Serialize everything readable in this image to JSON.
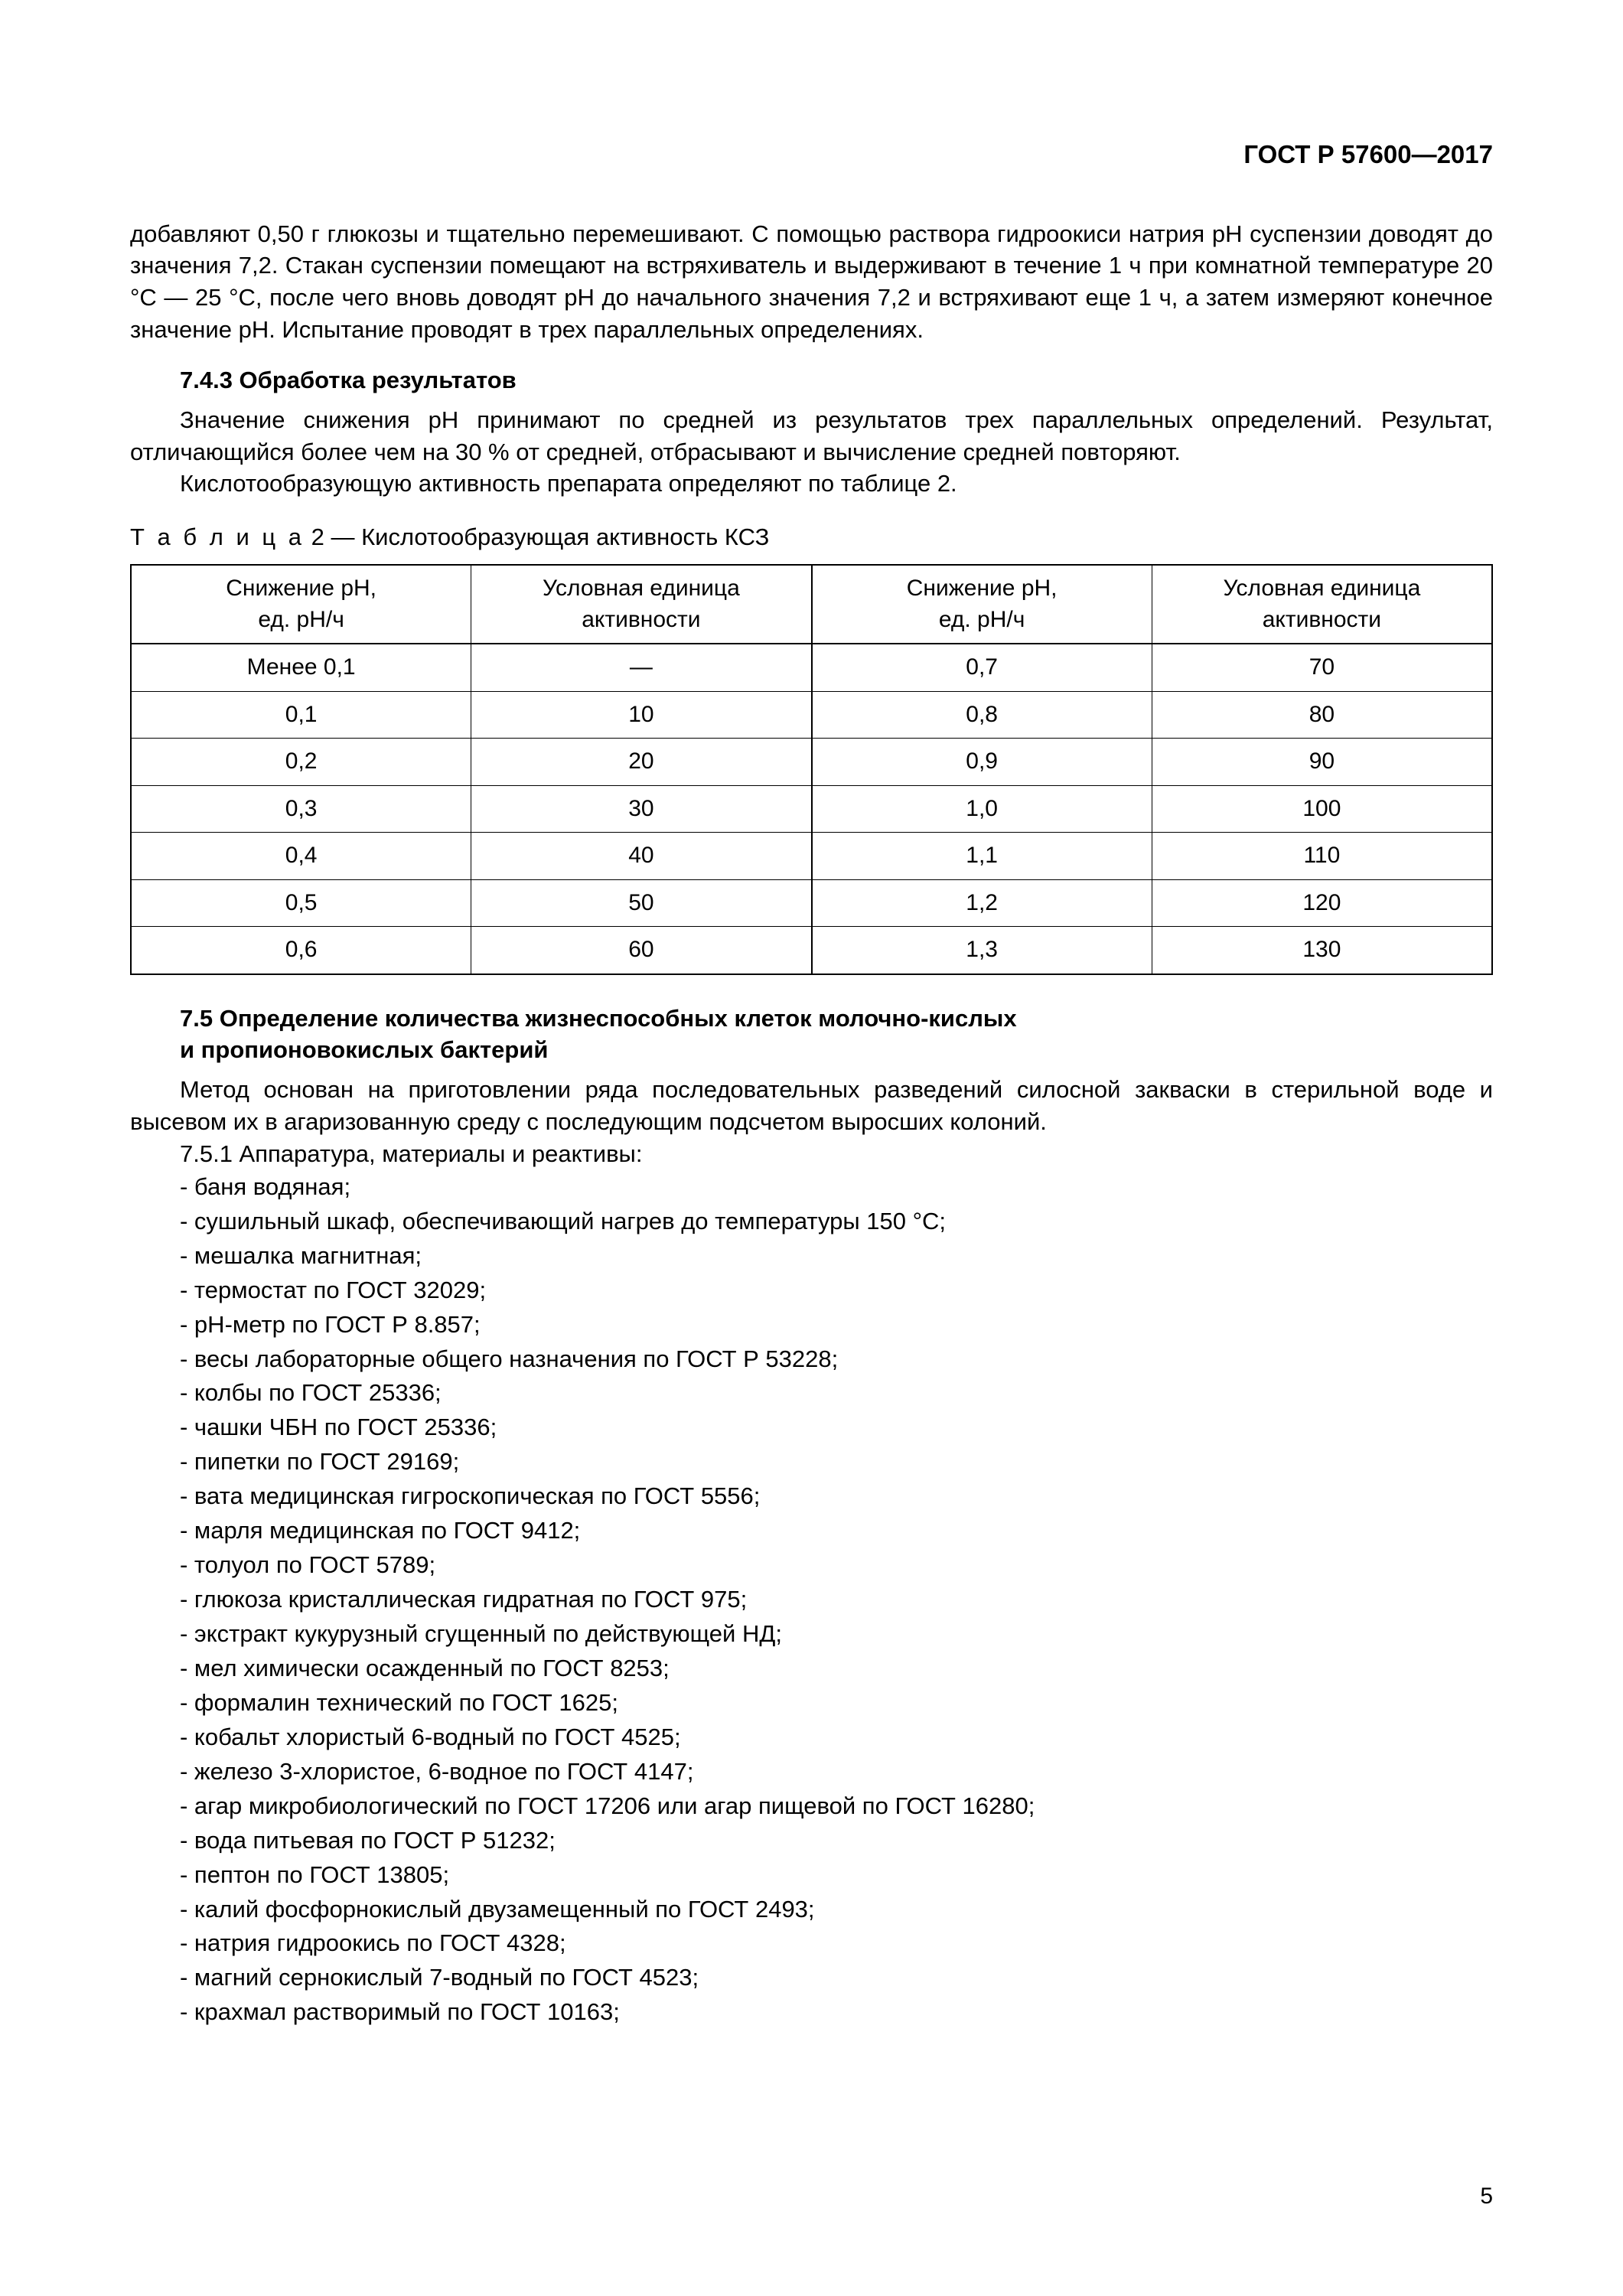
{
  "doc_header": "ГОСТ Р 57600—2017",
  "p1": "добавляют 0,50 г глюкозы и тщательно перемешивают. С помощью раствора гидроокиси натрия pH суспензии доводят до значения 7,2. Стакан суспензии помещают на встряхиватель и выдерживают в течение 1 ч при комнатной температуре 20 °C — 25 °C, после чего вновь доводят pH до начального значения 7,2 и встряхивают еще 1 ч, а затем измеряют конечное значение pH. Испытание проводят в трех параллельных определениях.",
  "h743": "7.4.3 Обработка результатов",
  "p2": "Значение снижения pH принимают по средней из результатов трех параллельных определений. Результат, отличающийся более чем на 30 % от средней, отбрасывают и вычисление средней повторяют.",
  "p3": "Кислотообразующую активность препарата определяют по таблице 2.",
  "table": {
    "caption_spaced": "Т а б л и ц а",
    "caption_rest": "  2 — Кислотообразующая активность КСЗ",
    "columns": [
      {
        "l1": "Снижение pH,",
        "l2": "ед. pH/ч"
      },
      {
        "l1": "Условная единица",
        "l2": "активности"
      },
      {
        "l1": "Снижение pH,",
        "l2": "ед. pH/ч"
      },
      {
        "l1": "Условная единица",
        "l2": "активности"
      }
    ],
    "rows": [
      [
        "Менее 0,1",
        "—",
        "0,7",
        "70"
      ],
      [
        "0,1",
        "10",
        "0,8",
        "80"
      ],
      [
        "0,2",
        "20",
        "0,9",
        "90"
      ],
      [
        "0,3",
        "30",
        "1,0",
        "100"
      ],
      [
        "0,4",
        "40",
        "1,1",
        "110"
      ],
      [
        "0,5",
        "50",
        "1,2",
        "120"
      ],
      [
        "0,6",
        "60",
        "1,3",
        "130"
      ]
    ]
  },
  "h75_l1": "7.5 Определение количества жизнеспособных клеток молочно-кислых",
  "h75_l2": "и пропионовокислых бактерий",
  "p4": "Метод основан на приготовлении ряда последовательных разведений силосной закваски в стерильной воде и высевом их в агаризованную среду с последующим подсчетом выросших колоний.",
  "p5": "7.5.1 Аппаратура, материалы и реактивы:",
  "items": [
    "- баня водяная;",
    "- сушильный шкаф, обеспечивающий нагрев до температуры 150 °C;",
    "- мешалка магнитная;",
    "- термостат по ГОСТ 32029;",
    "- pH-метр по ГОСТ Р 8.857;",
    "- весы лабораторные общего назначения по ГОСТ Р 53228;",
    "- колбы по ГОСТ 25336;",
    "- чашки ЧБН по ГОСТ 25336;",
    "- пипетки по ГОСТ 29169;",
    "- вата медицинская гигроскопическая по ГОСТ 5556;",
    "- марля медицинская по ГОСТ 9412;",
    "- толуол по ГОСТ 5789;",
    "- глюкоза кристаллическая гидратная по ГОСТ 975;",
    "- экстракт кукурузный сгущенный по действующей НД;",
    "- мел химически осажденный по ГОСТ 8253;",
    "- формалин технический по ГОСТ 1625;",
    "- кобальт хлористый 6-водный по ГОСТ 4525;",
    "- железо 3-хлористое, 6-водное по ГОСТ 4147;",
    "- агар микробиологический по ГОСТ 17206 или агар пищевой по ГОСТ 16280;",
    "- вода питьевая по ГОСТ Р 51232;",
    "- пептон по ГОСТ 13805;",
    "- калий фосфорнокислый двузамещенный по ГОСТ 2493;",
    "- натрия гидроокись по ГОСТ 4328;",
    "- магний сернокислый 7-водный по ГОСТ 4523;",
    "- крахмал растворимый по ГОСТ 10163;"
  ],
  "page_no": "5"
}
